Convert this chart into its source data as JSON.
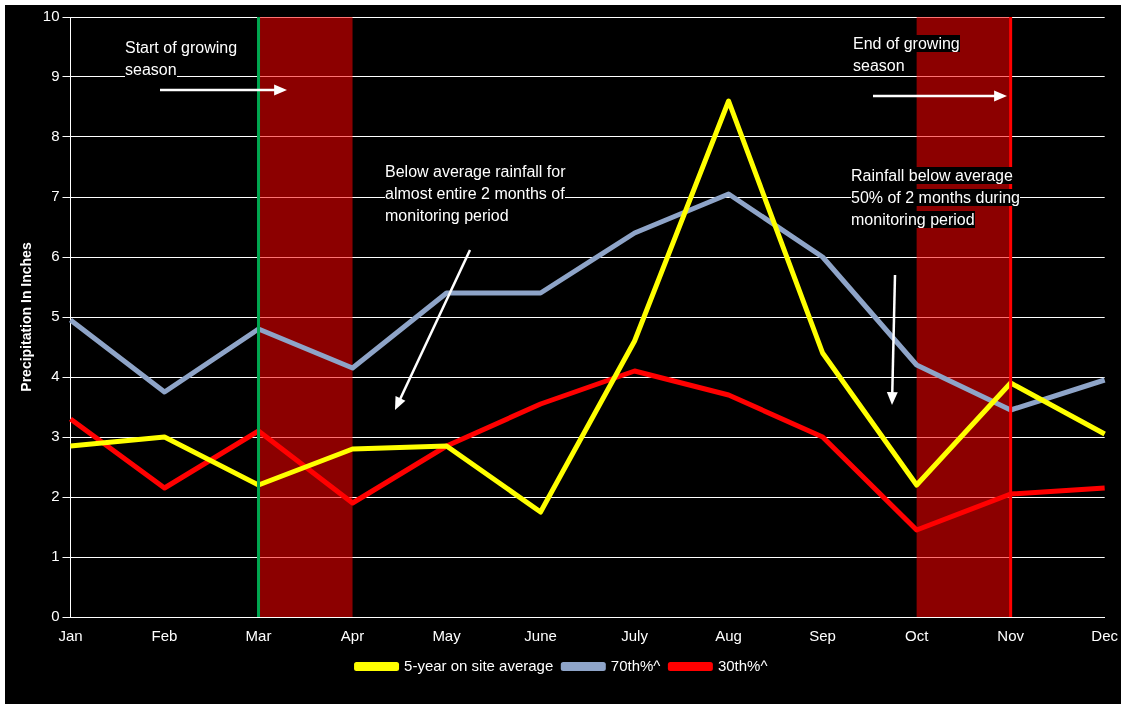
{
  "chart_data": {
    "type": "line",
    "ylabel": "Precipitation In Inches",
    "categories": [
      "Jan",
      "Feb",
      "Mar",
      "Apr",
      "May",
      "June",
      "July",
      "Aug",
      "Sep",
      "Oct",
      "Nov",
      "Dec"
    ],
    "series": [
      {
        "name": "5-year on site average",
        "color": "#ffff00",
        "values": [
          2.85,
          3.0,
          2.2,
          2.8,
          2.85,
          1.75,
          4.6,
          8.6,
          4.4,
          2.2,
          3.9,
          3.05
        ]
      },
      {
        "name": "70th%^",
        "color": "#8ea4c8",
        "values": [
          4.95,
          3.75,
          4.8,
          4.15,
          5.4,
          5.4,
          6.4,
          7.05,
          6.0,
          4.2,
          3.45,
          3.95
        ]
      },
      {
        "name": "30th%^",
        "color": "#ff0000",
        "values": [
          3.3,
          2.15,
          3.1,
          1.9,
          2.85,
          3.55,
          4.1,
          3.7,
          3.0,
          1.45,
          2.05,
          2.15
        ]
      }
    ],
    "ylim": [
      0,
      10
    ],
    "yticks": [
      0,
      1,
      2,
      3,
      4,
      5,
      6,
      7,
      8,
      9,
      10
    ],
    "grid": "y",
    "legend": "bottom",
    "marker": "none",
    "line_style": "solid",
    "ref_lines": [
      {
        "axis": "x",
        "value": "Mar",
        "color": "#00a650"
      },
      {
        "axis": "x",
        "value": "Nov",
        "color": "#ff0000"
      }
    ],
    "bands": [
      {
        "axis": "x",
        "from": "Mar",
        "to": "Apr",
        "color": "#ff0000"
      },
      {
        "axis": "x",
        "from": "Oct",
        "to": "Nov",
        "color": "#ff0000"
      }
    ],
    "annotations": [
      "Start of growing season",
      "End of growing season",
      "Below average rainfall for  almost entire  2 months of monitoring period",
      "Rainfall below average 50% of 2 months during monitoring period"
    ]
  }
}
